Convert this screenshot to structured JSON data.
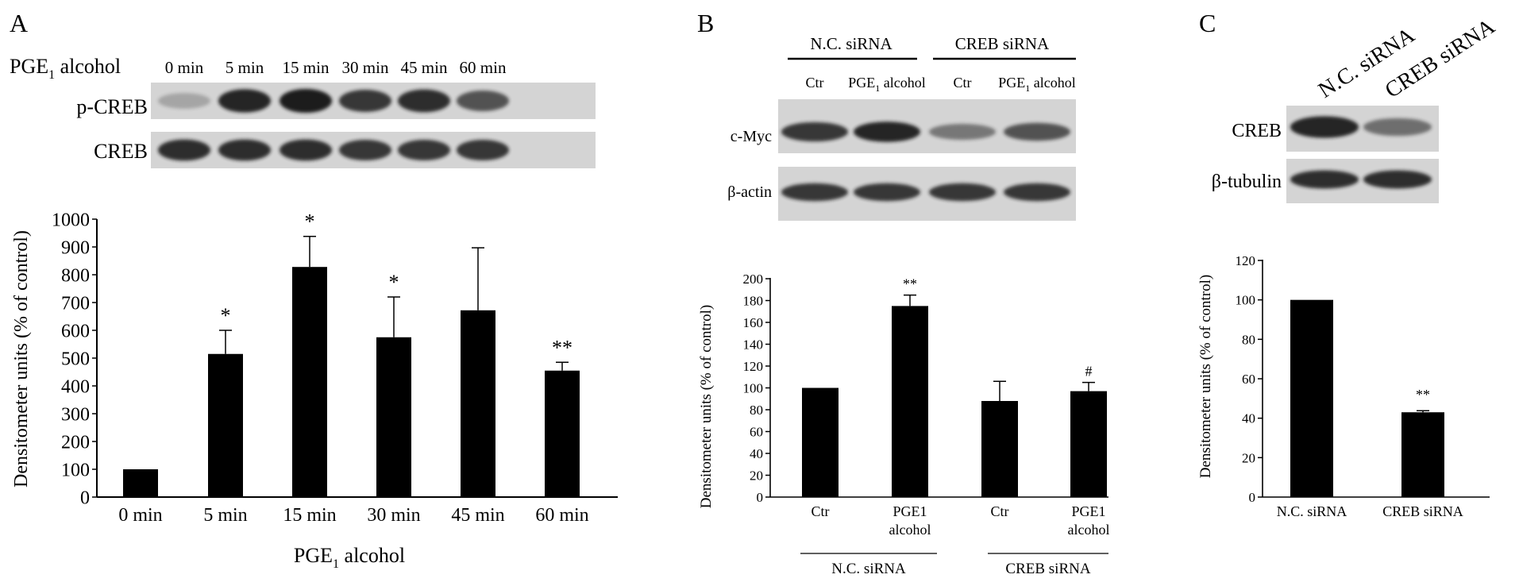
{
  "colors": {
    "bar": "#000000",
    "axis": "#000000",
    "band": "#1a1a1a",
    "blot_bg": "#d4d4d4"
  },
  "panel_a": {
    "letter": "A",
    "treatment_main": "PGE",
    "treatment_sub": "1",
    "treatment_rest": " alcohol",
    "timepoints": [
      "0 min",
      "5 min",
      "15 min",
      "30 min",
      "45 min",
      "60 min"
    ],
    "rows": [
      "p-CREB",
      "CREB"
    ],
    "pcreb_intensity": [
      0.25,
      0.95,
      1.0,
      0.85,
      0.9,
      0.7
    ],
    "creb_intensity": [
      0.9,
      0.9,
      0.9,
      0.85,
      0.85,
      0.85
    ]
  },
  "panel_b": {
    "letter": "B",
    "group_labels": [
      "N.C. siRNA",
      "CREB siRNA"
    ],
    "lane_ctr": "Ctr",
    "lane_pge_main": "PGE",
    "lane_pge_sub": "1",
    "lane_pge_rest": " alcohol",
    "rows": [
      "c-Myc",
      "β-actin"
    ],
    "cmyc_intensity": [
      0.85,
      0.95,
      0.5,
      0.7
    ],
    "actin_intensity": [
      0.85,
      0.85,
      0.85,
      0.85
    ]
  },
  "panel_c": {
    "letter": "C",
    "lanes": [
      "N.C. siRNA",
      "CREB siRNA"
    ],
    "rows": [
      "CREB",
      "β-tubulin"
    ],
    "creb_intensity": [
      0.95,
      0.55
    ],
    "tubulin_intensity": [
      0.9,
      0.9
    ]
  },
  "chart_data": [
    {
      "type": "bar",
      "panel": "A",
      "categories": [
        "0 min",
        "5 min",
        "15 min",
        "30 min",
        "45 min",
        "60 min"
      ],
      "values": [
        100,
        515,
        828,
        575,
        672,
        455
      ],
      "errors": [
        0,
        85,
        110,
        145,
        225,
        30
      ],
      "annotations": [
        "",
        "*",
        "*",
        "*",
        "",
        "**"
      ],
      "ylabel": "Densitometer units (% of control)",
      "xlabel_main": "PGE",
      "xlabel_sub": "1",
      "xlabel_rest": " alcohol",
      "ylim": [
        0,
        1000
      ],
      "yticks": [
        0,
        100,
        200,
        300,
        400,
        500,
        600,
        700,
        800,
        900,
        1000
      ]
    },
    {
      "type": "bar",
      "panel": "B",
      "categories": [
        [
          "Ctr"
        ],
        [
          "PGE1",
          "alcohol"
        ],
        [
          "Ctr"
        ],
        [
          "PGE1",
          "alcohol"
        ]
      ],
      "groups": [
        "N.C. siRNA",
        "CREB siRNA"
      ],
      "values": [
        100,
        175,
        88,
        97
      ],
      "errors": [
        0,
        10,
        18,
        8
      ],
      "annotations": [
        "",
        "**",
        "",
        "#"
      ],
      "ylabel": "Densitometer units (% of control)",
      "ylim": [
        0,
        200
      ],
      "yticks": [
        0,
        20,
        40,
        60,
        80,
        100,
        120,
        140,
        160,
        180,
        200
      ]
    },
    {
      "type": "bar",
      "panel": "C",
      "categories": [
        "N.C. siRNA",
        "CREB siRNA"
      ],
      "values": [
        100,
        43
      ],
      "errors": [
        0,
        0.8
      ],
      "annotations": [
        "",
        "**"
      ],
      "ylabel": "Densitometer units (% of control)",
      "ylim": [
        0,
        120
      ],
      "yticks": [
        0,
        20,
        40,
        60,
        80,
        100,
        120
      ]
    }
  ]
}
